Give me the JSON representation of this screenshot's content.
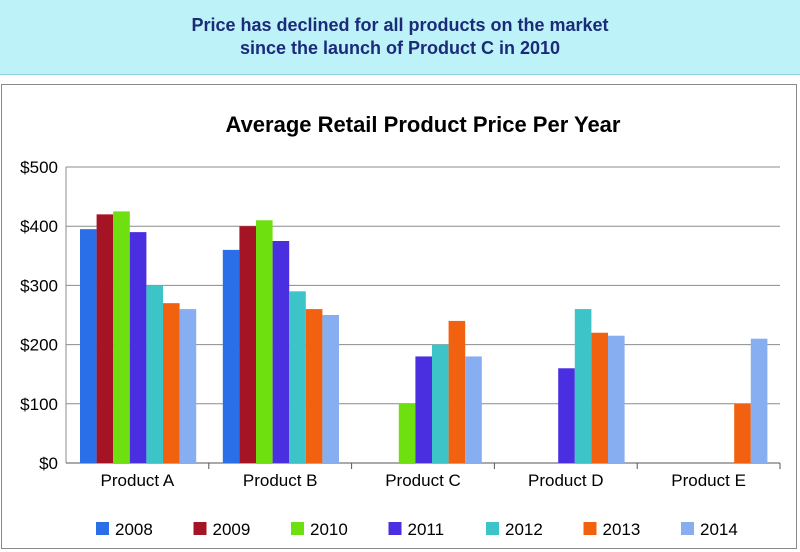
{
  "banner": {
    "line1": "Price has declined for all products on the market",
    "line2": "since the launch of Product C in 2010"
  },
  "chart_data": {
    "type": "bar",
    "title": "Average Retail Product Price Per Year",
    "xlabel": "",
    "ylabel": "",
    "ylim": [
      0,
      500
    ],
    "yticks": [
      0,
      100,
      200,
      300,
      400,
      500
    ],
    "ytick_labels": [
      "$0",
      "$100",
      "$200",
      "$300",
      "$400",
      "$500"
    ],
    "categories": [
      "Product A",
      "Product B",
      "Product C",
      "Product D",
      "Product E"
    ],
    "grid": true,
    "legend_position": "bottom",
    "series": [
      {
        "name": "2008",
        "color": "#2b6fe8",
        "values": [
          395,
          360,
          null,
          null,
          null
        ]
      },
      {
        "name": "2009",
        "color": "#a51424",
        "values": [
          420,
          400,
          null,
          null,
          null
        ]
      },
      {
        "name": "2010",
        "color": "#6ee010",
        "values": [
          425,
          410,
          100,
          null,
          null
        ]
      },
      {
        "name": "2011",
        "color": "#4a2fe0",
        "values": [
          390,
          375,
          180,
          160,
          null
        ]
      },
      {
        "name": "2012",
        "color": "#3cc4c8",
        "values": [
          300,
          290,
          200,
          260,
          null
        ]
      },
      {
        "name": "2013",
        "color": "#f2610f",
        "values": [
          270,
          260,
          240,
          220,
          100
        ]
      },
      {
        "name": "2014",
        "color": "#88aef2",
        "values": [
          260,
          250,
          180,
          215,
          210
        ]
      }
    ]
  }
}
